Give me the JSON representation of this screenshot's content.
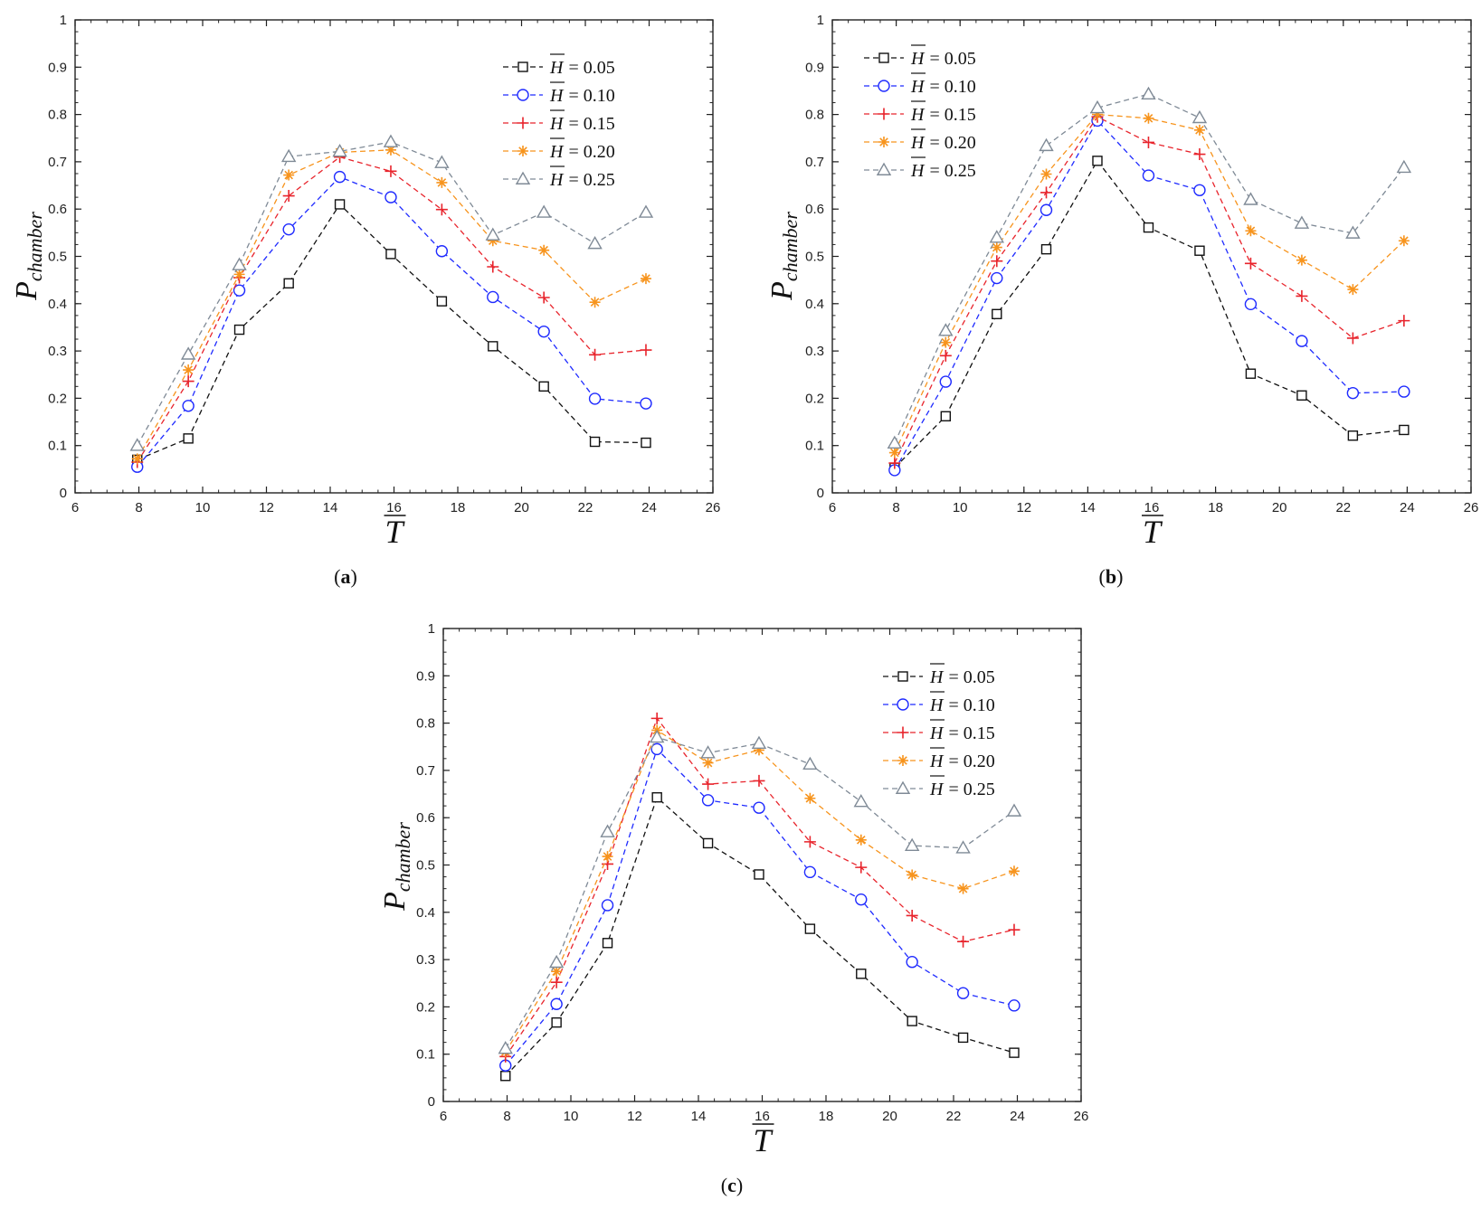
{
  "chart_data": [
    {
      "type": "line",
      "panel": "a",
      "panel_label": "a",
      "xlabel": "T",
      "ylabel_main": "P",
      "ylabel_sub": "chamber",
      "xlim": [
        6,
        26
      ],
      "ylim": [
        0,
        1
      ],
      "xticks": [
        6,
        8,
        10,
        12,
        14,
        16,
        18,
        20,
        22,
        24,
        26
      ],
      "yticks": [
        0,
        0.1,
        0.2,
        0.3,
        0.4,
        0.5,
        0.6,
        0.7,
        0.8,
        0.9,
        1
      ],
      "grid": false,
      "legend_position": "top-right",
      "x": [
        7.95,
        9.55,
        11.15,
        12.7,
        14.3,
        15.9,
        17.5,
        19.1,
        20.7,
        22.3,
        23.9
      ],
      "series": [
        {
          "name": "H = 0.05",
          "symbol": "H",
          "value_text": "= 0.05",
          "color": "#111111",
          "marker": "square",
          "values": [
            0.07,
            0.115,
            0.345,
            0.443,
            0.61,
            0.505,
            0.405,
            0.31,
            0.225,
            0.108,
            0.106
          ]
        },
        {
          "name": "H = 0.10",
          "symbol": "H",
          "value_text": "= 0.10",
          "color": "#1f2bff",
          "marker": "circle",
          "values": [
            0.055,
            0.184,
            0.428,
            0.557,
            0.668,
            0.625,
            0.511,
            0.414,
            0.341,
            0.199,
            0.189
          ]
        },
        {
          "name": "H = 0.15",
          "symbol": "H",
          "value_text": "= 0.15",
          "color": "#e8242c",
          "marker": "plus",
          "values": [
            0.065,
            0.236,
            0.455,
            0.628,
            0.71,
            0.68,
            0.599,
            0.478,
            0.413,
            0.292,
            0.302
          ]
        },
        {
          "name": "H = 0.20",
          "symbol": "H",
          "value_text": "= 0.20",
          "color": "#f7941d",
          "marker": "asterisk",
          "values": [
            0.072,
            0.26,
            0.462,
            0.672,
            0.72,
            0.725,
            0.656,
            0.533,
            0.513,
            0.403,
            0.453
          ]
        },
        {
          "name": "H = 0.25",
          "symbol": "H",
          "value_text": "= 0.25",
          "color": "#7f8a96",
          "marker": "triangle",
          "values": [
            0.1,
            0.293,
            0.482,
            0.711,
            0.722,
            0.742,
            0.698,
            0.545,
            0.593,
            0.527,
            0.593
          ]
        }
      ]
    },
    {
      "type": "line",
      "panel": "b",
      "panel_label": "b",
      "xlabel": "T",
      "ylabel_main": "P",
      "ylabel_sub": "chamber",
      "xlim": [
        6,
        26
      ],
      "ylim": [
        0,
        1
      ],
      "xticks": [
        6,
        8,
        10,
        12,
        14,
        16,
        18,
        20,
        22,
        24,
        26
      ],
      "yticks": [
        0,
        0.1,
        0.2,
        0.3,
        0.4,
        0.5,
        0.6,
        0.7,
        0.8,
        0.9,
        1
      ],
      "grid": false,
      "legend_position": "top-left",
      "x": [
        7.95,
        9.55,
        11.15,
        12.7,
        14.3,
        15.9,
        17.5,
        19.1,
        20.7,
        22.3,
        23.9
      ],
      "series": [
        {
          "name": "H = 0.05",
          "symbol": "H",
          "value_text": "= 0.05",
          "color": "#111111",
          "marker": "square",
          "values": [
            0.053,
            0.162,
            0.378,
            0.515,
            0.702,
            0.561,
            0.512,
            0.252,
            0.206,
            0.121,
            0.133
          ]
        },
        {
          "name": "H = 0.10",
          "symbol": "H",
          "value_text": "= 0.10",
          "color": "#1f2bff",
          "marker": "circle",
          "values": [
            0.048,
            0.235,
            0.454,
            0.598,
            0.787,
            0.671,
            0.64,
            0.399,
            0.321,
            0.211,
            0.214
          ]
        },
        {
          "name": "H = 0.15",
          "symbol": "H",
          "value_text": "= 0.15",
          "color": "#e8242c",
          "marker": "plus",
          "values": [
            0.063,
            0.29,
            0.49,
            0.635,
            0.795,
            0.741,
            0.716,
            0.485,
            0.416,
            0.327,
            0.364
          ]
        },
        {
          "name": "H = 0.20",
          "symbol": "H",
          "value_text": "= 0.20",
          "color": "#f7941d",
          "marker": "asterisk",
          "values": [
            0.085,
            0.318,
            0.519,
            0.674,
            0.8,
            0.792,
            0.767,
            0.554,
            0.492,
            0.43,
            0.533
          ]
        },
        {
          "name": "H = 0.25",
          "symbol": "H",
          "value_text": "= 0.25",
          "color": "#7f8a96",
          "marker": "triangle",
          "values": [
            0.105,
            0.343,
            0.54,
            0.734,
            0.814,
            0.843,
            0.793,
            0.62,
            0.57,
            0.549,
            0.688
          ]
        }
      ]
    },
    {
      "type": "line",
      "panel": "c",
      "panel_label": "c",
      "xlabel": "T",
      "ylabel_main": "P",
      "ylabel_sub": "chamber",
      "xlim": [
        6,
        26
      ],
      "ylim": [
        0,
        1
      ],
      "xticks": [
        6,
        8,
        10,
        12,
        14,
        16,
        18,
        20,
        22,
        24,
        26
      ],
      "yticks": [
        0,
        0.1,
        0.2,
        0.3,
        0.4,
        0.5,
        0.6,
        0.7,
        0.8,
        0.9,
        1
      ],
      "grid": false,
      "legend_position": "top-right",
      "x": [
        7.95,
        9.55,
        11.15,
        12.7,
        14.3,
        15.9,
        17.5,
        19.1,
        20.7,
        22.3,
        23.9
      ],
      "series": [
        {
          "name": "H = 0.05",
          "symbol": "H",
          "value_text": "= 0.05",
          "color": "#111111",
          "marker": "square",
          "values": [
            0.054,
            0.167,
            0.335,
            0.643,
            0.546,
            0.48,
            0.365,
            0.27,
            0.17,
            0.135,
            0.103
          ]
        },
        {
          "name": "H = 0.10",
          "symbol": "H",
          "value_text": "= 0.10",
          "color": "#1f2bff",
          "marker": "circle",
          "values": [
            0.076,
            0.206,
            0.415,
            0.745,
            0.637,
            0.621,
            0.485,
            0.427,
            0.295,
            0.229,
            0.203
          ]
        },
        {
          "name": "H = 0.15",
          "symbol": "H",
          "value_text": "= 0.15",
          "color": "#e8242c",
          "marker": "plus",
          "values": [
            0.095,
            0.252,
            0.502,
            0.81,
            0.671,
            0.678,
            0.549,
            0.495,
            0.393,
            0.338,
            0.363
          ]
        },
        {
          "name": "H = 0.20",
          "symbol": "H",
          "value_text": "= 0.20",
          "color": "#f7941d",
          "marker": "asterisk",
          "values": [
            0.105,
            0.275,
            0.518,
            0.785,
            0.716,
            0.743,
            0.641,
            0.553,
            0.479,
            0.45,
            0.487
          ]
        },
        {
          "name": "H = 0.25",
          "symbol": "H",
          "value_text": "= 0.25",
          "color": "#7f8a96",
          "marker": "triangle",
          "values": [
            0.112,
            0.294,
            0.57,
            0.77,
            0.737,
            0.757,
            0.713,
            0.634,
            0.541,
            0.536,
            0.614
          ]
        }
      ]
    }
  ]
}
